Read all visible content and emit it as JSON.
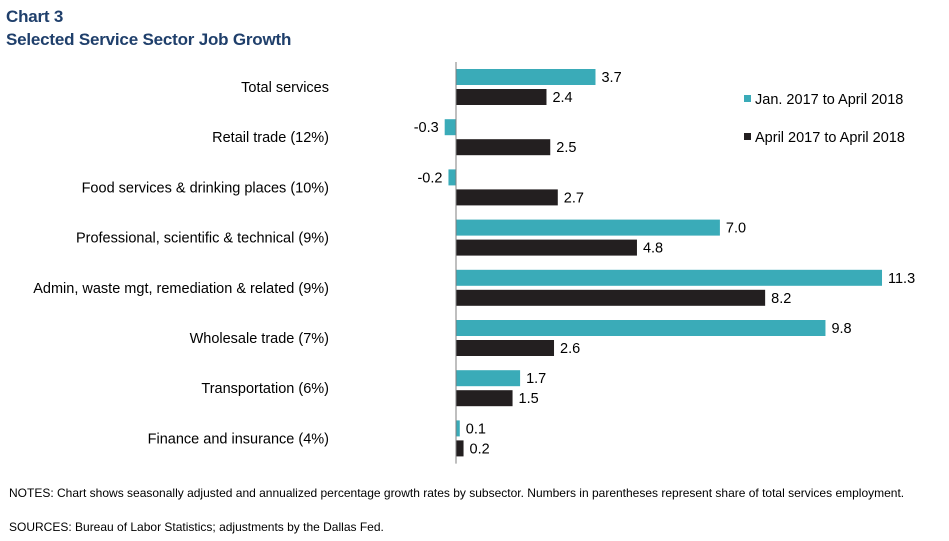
{
  "header": {
    "chart_number": "Chart 3",
    "title": "Selected Service Sector Job Growth"
  },
  "colors": {
    "title": "#1f3f6b",
    "series_1": "#3aabb8",
    "series_2": "#231f20",
    "axis": "#7f7f7f"
  },
  "chart_data": {
    "type": "bar",
    "orientation": "horizontal",
    "title": "Selected Service Sector Job Growth",
    "categories": [
      "Total services",
      "Retail trade (12%)",
      "Food services  & drinking places (10%)",
      "Professional, scientific & technical (9%)",
      "Admin, waste mgt, remediation & related (9%)",
      "Wholesale trade (7%)",
      "Transportation (6%)",
      "Finance and insurance (4%)"
    ],
    "series": [
      {
        "name": "Jan. 2017 to April 2018",
        "values": [
          3.7,
          -0.3,
          -0.2,
          7.0,
          11.3,
          9.8,
          1.7,
          0.1
        ],
        "labels": [
          "3.7",
          "-0.3",
          "-0.2",
          "7.0",
          "11.3",
          "9.8",
          "1.7",
          "0.1"
        ]
      },
      {
        "name": "April 2017 to April 2018",
        "values": [
          2.4,
          2.5,
          2.7,
          4.8,
          8.2,
          2.6,
          1.5,
          0.2
        ],
        "labels": [
          "2.4",
          "2.5",
          "2.7",
          "4.8",
          "8.2",
          "2.6",
          "1.5",
          "0.2"
        ]
      }
    ],
    "xlim": [
      -0.3,
      11.3
    ],
    "grid": false,
    "legend_position": "top-right"
  },
  "footer": {
    "notes": "NOTES: Chart shows seasonally adjusted and annualized percentage growth rates by subsector. Numbers in parentheses represent share of total services employment.",
    "sources": "SOURCES: Bureau of Labor Statistics; adjustments by the Dallas Fed."
  }
}
